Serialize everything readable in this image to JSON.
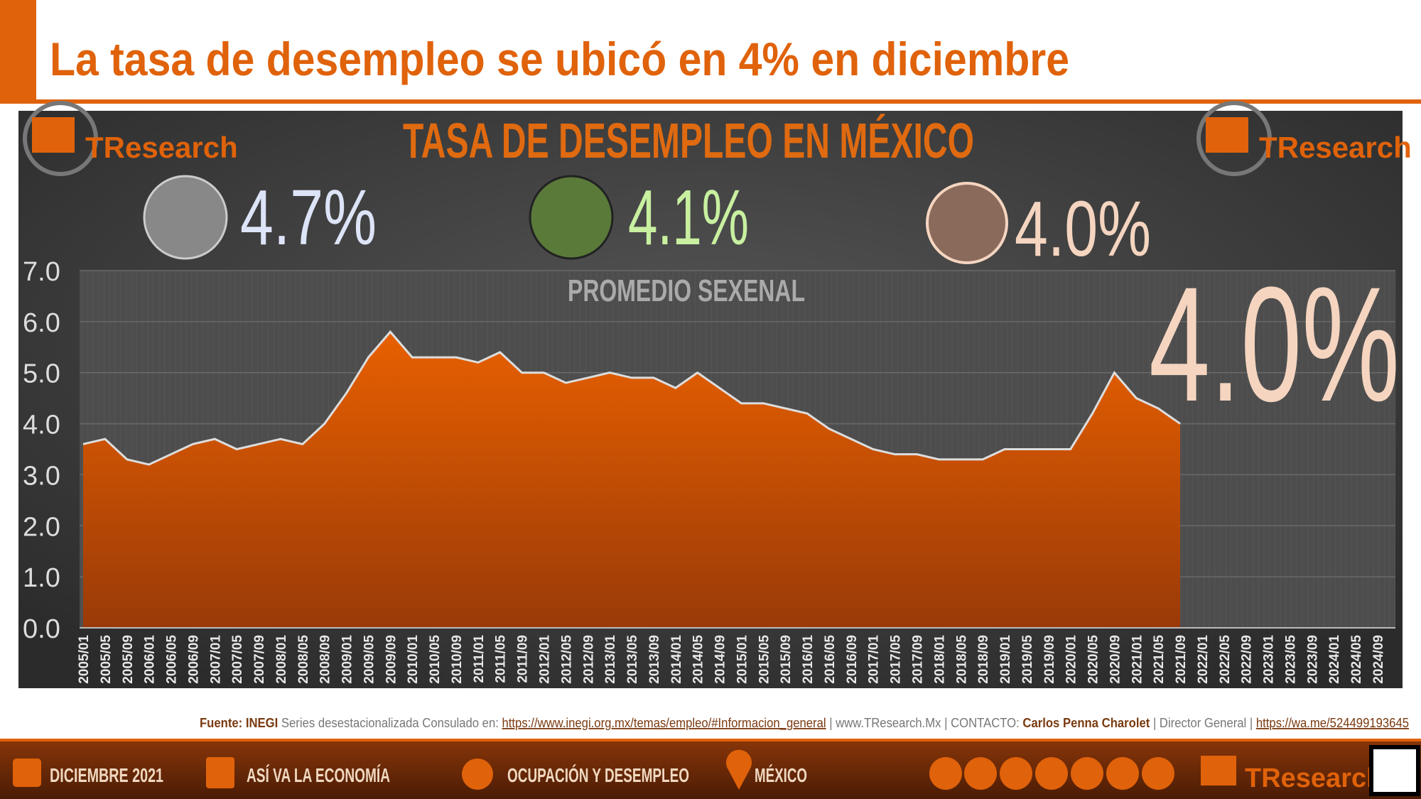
{
  "header": {
    "title": "La tasa de desempleo se ubicó en 4% en diciembre"
  },
  "brand": "TResearch",
  "chart_data": {
    "type": "area",
    "title": "TASA DE DESEMPLEO EN MÉXICO",
    "averages": [
      "4.7%",
      "4.1%",
      "4.0%"
    ],
    "averages_label": "PROMEDIO SEXENAL",
    "highlight": "4.0%",
    "color": "#e05a00",
    "categories": [
      "2005/01",
      "2005/05",
      "2005/09",
      "2006/01",
      "2006/05",
      "2006/09",
      "2007/01",
      "2007/05",
      "2007/09",
      "2008/01",
      "2008/05",
      "2008/09",
      "2009/01",
      "2009/05",
      "2009/09",
      "2010/01",
      "2010/05",
      "2010/09",
      "2011/01",
      "2011/05",
      "2011/09",
      "2012/01",
      "2012/05",
      "2012/09",
      "2013/01",
      "2013/05",
      "2013/09",
      "2014/01",
      "2014/05",
      "2014/09",
      "2015/01",
      "2015/05",
      "2015/09",
      "2016/01",
      "2016/05",
      "2016/09",
      "2017/01",
      "2017/05",
      "2017/09",
      "2018/01",
      "2018/05",
      "2018/09",
      "2019/01",
      "2019/05",
      "2019/09",
      "2020/01",
      "2020/05",
      "2020/09",
      "2021/01",
      "2021/05",
      "2021/09",
      "2022/01",
      "2022/05",
      "2022/09",
      "2023/01",
      "2023/05",
      "2023/09",
      "2024/01",
      "2024/05",
      "2024/09"
    ],
    "values": [
      3.6,
      3.7,
      3.3,
      3.2,
      3.4,
      3.6,
      3.7,
      3.5,
      3.6,
      3.7,
      3.6,
      4.0,
      4.6,
      5.3,
      5.8,
      5.3,
      5.3,
      5.3,
      5.2,
      5.4,
      5.0,
      5.0,
      4.8,
      4.9,
      5.0,
      4.9,
      4.9,
      4.7,
      5.0,
      4.7,
      4.4,
      4.4,
      4.3,
      4.2,
      3.9,
      3.7,
      3.5,
      3.4,
      3.4,
      3.3,
      3.3,
      3.3,
      3.5,
      3.5,
      3.5,
      3.5,
      4.2,
      5.0,
      4.5,
      4.3,
      4.0,
      null,
      null,
      null,
      null,
      null,
      null,
      null,
      null,
      null
    ],
    "ylim": [
      0,
      7
    ],
    "yticks": [
      {
        "value": 0,
        "label": "0.0"
      },
      {
        "value": 1,
        "label": "1.0"
      },
      {
        "value": 2,
        "label": "2.0"
      },
      {
        "value": 3,
        "label": "3.0"
      },
      {
        "value": 4,
        "label": "4.0"
      },
      {
        "value": 5,
        "label": "5.0"
      },
      {
        "value": 6,
        "label": "6.0"
      },
      {
        "value": 7,
        "label": "7.0"
      }
    ],
    "grid": true
  },
  "source": {
    "label": "Fuente: INEGI",
    "note": "Series desestacionalizada Consulado en:",
    "url": "https://www.inegi.org.mx/temas/empleo/#Informacion_general",
    "site": "| www.TResearch.Mx | CONTACTO:",
    "contact": "Carlos Penna Charolet",
    "role": "| Director General |",
    "wa": "https://wa.me/524499193645"
  },
  "footer": {
    "date": "DICIEMBRE 2021",
    "section": "ASÍ VA LA ECONOMÍA",
    "topic": "OCUPACIÓN Y DESEMPLEO",
    "region": "MÉXICO"
  }
}
